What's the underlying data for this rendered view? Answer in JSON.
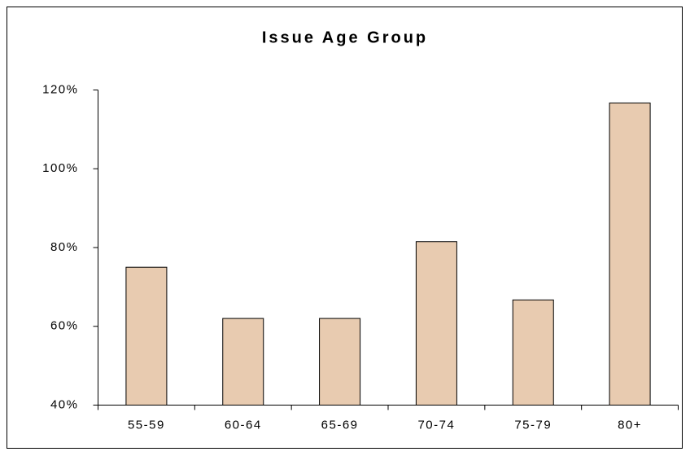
{
  "chart_data": {
    "type": "bar",
    "title": "Issue Age Group",
    "categories": [
      "55-59",
      "60-64",
      "65-69",
      "70-74",
      "75-79",
      "80+"
    ],
    "values": [
      75,
      62,
      62,
      81.5,
      66.7,
      116.7
    ],
    "color": "#e8cbb0",
    "ylim": [
      40,
      120
    ],
    "yticks": [
      {
        "value": 40,
        "label": "40%"
      },
      {
        "value": 60,
        "label": "60%"
      },
      {
        "value": 80,
        "label": "80%"
      },
      {
        "value": 100,
        "label": "100%"
      },
      {
        "value": 120,
        "label": "120%"
      }
    ],
    "grid": false
  }
}
